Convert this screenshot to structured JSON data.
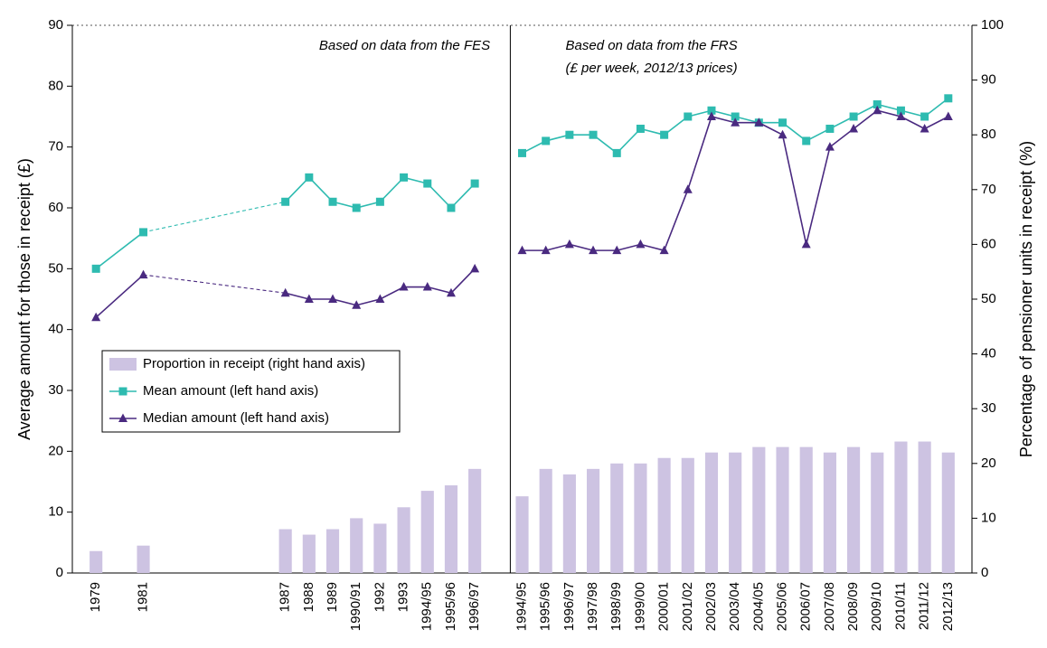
{
  "chart_data": [
    {
      "type": "bar-line",
      "ylabel": "Average amount for those in receipt (£)",
      "y2label": "Percentage of pensioner units in receipt (%)",
      "ylim": [
        0,
        90
      ],
      "yticks": [
        0,
        10,
        20,
        30,
        40,
        50,
        60,
        70,
        80,
        90
      ],
      "y2lim": [
        0,
        100
      ],
      "y2ticks": [
        0,
        10,
        20,
        30,
        40,
        50,
        60,
        70,
        80,
        90,
        100
      ],
      "annotation": [
        "Based on data from the FES"
      ],
      "legend": "left",
      "categories": [
        "1979",
        null,
        "1981",
        null,
        null,
        null,
        null,
        null,
        "1987",
        "1988",
        "1989",
        "1990/91",
        "1992",
        "1993",
        "1994/95",
        "1995/96",
        "1996/97"
      ],
      "series": [
        {
          "name": "Proportion in receipt (right hand axis)",
          "type": "bar",
          "axis": "y2",
          "color": "#cdc3e2",
          "values": [
            4,
            null,
            5,
            null,
            null,
            null,
            null,
            null,
            8,
            7,
            8,
            10,
            9,
            12,
            15,
            16,
            19
          ]
        },
        {
          "name": "Mean amount (left hand axis)",
          "type": "line",
          "marker": "square",
          "color": "#2ebbb0",
          "values": [
            50,
            null,
            56,
            null,
            null,
            null,
            null,
            null,
            61,
            65,
            61,
            60,
            61,
            65,
            64,
            60,
            64
          ]
        },
        {
          "name": "Median amount (left hand axis)",
          "type": "line",
          "marker": "triangle",
          "color": "#4a2a80",
          "values": [
            42,
            null,
            49,
            null,
            null,
            null,
            null,
            null,
            46,
            45,
            45,
            44,
            45,
            47,
            47,
            46,
            50
          ]
        }
      ]
    },
    {
      "type": "bar-line",
      "annotation": [
        "Based on data from the FRS",
        "(£ per week, 2012/13 prices)"
      ],
      "categories": [
        "1994/95",
        "1995/96",
        "1996/97",
        "1997/98",
        "1998/99",
        "1999/00",
        "2000/01",
        "2001/02",
        "2002/03",
        "2003/04",
        "2004/05",
        "2005/06",
        "2006/07",
        "2007/08",
        "2008/09",
        "2009/10",
        "2010/11",
        "2011/12",
        "2012/13"
      ],
      "series": [
        {
          "type": "bar",
          "axis": "y2",
          "color": "#cdc3e2",
          "values": [
            14,
            19,
            18,
            19,
            20,
            20,
            21,
            21,
            22,
            22,
            23,
            23,
            23,
            22,
            23,
            22,
            24,
            24,
            22
          ]
        },
        {
          "type": "line",
          "marker": "square",
          "color": "#2ebbb0",
          "values": [
            69,
            71,
            72,
            72,
            69,
            73,
            72,
            75,
            76,
            75,
            74,
            74,
            71,
            73,
            75,
            77,
            76,
            75,
            78
          ]
        },
        {
          "type": "line",
          "marker": "triangle",
          "color": "#4a2a80",
          "values": [
            53,
            53,
            54,
            53,
            53,
            54,
            53,
            63,
            75,
            74,
            74,
            72,
            54,
            70,
            73,
            76,
            75,
            73,
            75
          ]
        }
      ]
    }
  ]
}
